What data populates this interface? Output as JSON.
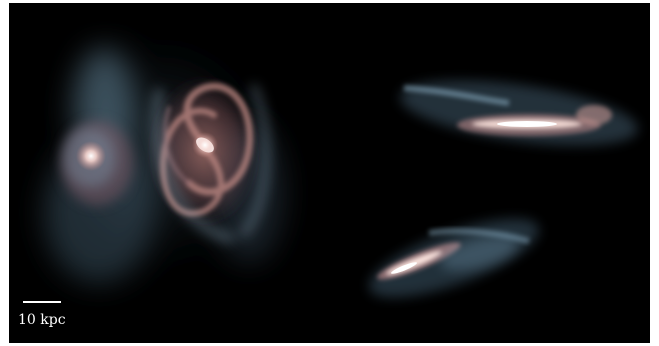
{
  "image": {
    "background_color": "#000000",
    "gas_color": "#9fc4dc",
    "star_color": "#d9a09a",
    "core_color": "#fff2ee"
  },
  "scalebar": {
    "label": "10 kpc",
    "color": "#ffffff"
  },
  "galaxies": [
    {
      "view": "face-on",
      "name": "left-small-galaxy"
    },
    {
      "view": "face-on",
      "name": "center-spiral-galaxy"
    },
    {
      "view": "edge-on",
      "name": "upper-right-edge-on-disk"
    },
    {
      "view": "edge-on",
      "name": "lower-right-edge-on-disk"
    }
  ]
}
